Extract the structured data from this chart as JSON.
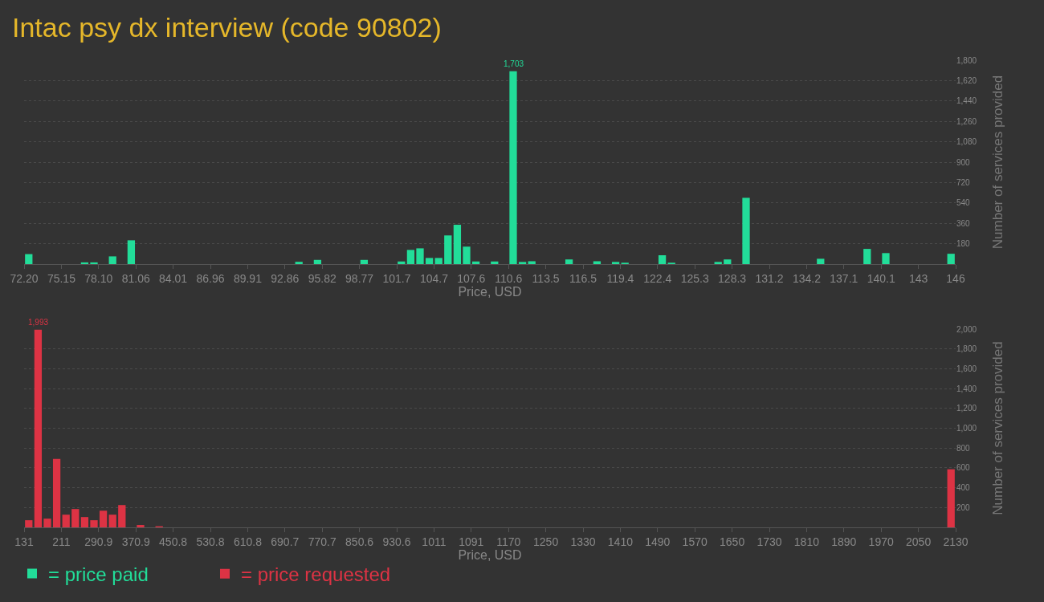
{
  "chart_data": [
    {
      "type": "histogram",
      "title": "Intac psy dx interview (code 90802)",
      "xlabel": "Price, USD",
      "ylabel": "Number of services provided",
      "bins": [
        72.2,
        72.938,
        73.676,
        74.414,
        75.152,
        75.89,
        76.628,
        77.366,
        78.104,
        78.842,
        79.58,
        80.318,
        81.056,
        81.794,
        82.532,
        83.27,
        84.008,
        84.746,
        85.484,
        86.222,
        86.96,
        87.698,
        88.436,
        89.174,
        89.912,
        90.65,
        91.388,
        92.126,
        92.864,
        93.602,
        94.34,
        95.078,
        95.816,
        96.554,
        97.292,
        98.03,
        98.768,
        99.506,
        100.244,
        100.982,
        101.72,
        102.458,
        103.196,
        103.934,
        104.672,
        105.41,
        106.148,
        106.886,
        107.624,
        108.362,
        109.1,
        109.838,
        110.576,
        111.314,
        112.052,
        112.79,
        113.528,
        114.266,
        115.004,
        115.742,
        116.48,
        117.218,
        117.956,
        118.694,
        119.432,
        120.17,
        120.908,
        121.646,
        122.384,
        123.122,
        123.86,
        124.598,
        125.336,
        126.074,
        126.812,
        127.55,
        128.288,
        129.026,
        129.764,
        130.502,
        131.24,
        131.978,
        132.716,
        133.454,
        134.192,
        134.93,
        135.668,
        136.406,
        137.144,
        137.882,
        138.62,
        139.358,
        140.096,
        140.834,
        141.572,
        142.31,
        143.048,
        143.786,
        144.524,
        145.262,
        146.0
      ],
      "series": [
        {
          "name": "= price paid",
          "color": "#22dd99",
          "values": [
            88,
            0,
            0,
            0,
            0,
            0,
            15,
            15,
            0,
            68,
            0,
            210,
            0,
            0,
            0,
            0,
            0,
            0,
            0,
            0,
            0,
            0,
            0,
            0,
            0,
            0,
            0,
            0,
            0,
            20,
            0,
            37,
            0,
            0,
            0,
            0,
            37,
            0,
            0,
            0,
            23,
            125,
            139,
            54,
            54,
            253,
            347,
            154,
            23,
            0,
            23,
            0,
            1703,
            19,
            25,
            0,
            0,
            0,
            41,
            0,
            0,
            25,
            0,
            19,
            12,
            0,
            0,
            0,
            78,
            12,
            0,
            0,
            0,
            0,
            19,
            41,
            0,
            585,
            0,
            0,
            0,
            0,
            0,
            0,
            0,
            47,
            0,
            0,
            0,
            0,
            134,
            0,
            97,
            0,
            0,
            0,
            0,
            0,
            0,
            91
          ]
        }
      ],
      "annotations": [
        {
          "text": "1,703",
          "x": 110.945,
          "y": 1703
        }
      ],
      "xlim": [
        72.2,
        146
      ],
      "xticks": [
        {
          "value": 72.2,
          "label": "72.20"
        },
        {
          "value": 75.152,
          "label": "75.15"
        },
        {
          "value": 78.104,
          "label": "78.10"
        },
        {
          "value": 81.056,
          "label": "81.06"
        },
        {
          "value": 84.008,
          "label": "84.01"
        },
        {
          "value": 86.96,
          "label": "86.96"
        },
        {
          "value": 89.912,
          "label": "89.91"
        },
        {
          "value": 92.864,
          "label": "92.86"
        },
        {
          "value": 95.816,
          "label": "95.82"
        },
        {
          "value": 98.768,
          "label": "98.77"
        },
        {
          "value": 101.72,
          "label": "101.7"
        },
        {
          "value": 104.672,
          "label": "104.7"
        },
        {
          "value": 107.624,
          "label": "107.6"
        },
        {
          "value": 110.576,
          "label": "110.6"
        },
        {
          "value": 113.528,
          "label": "113.5"
        },
        {
          "value": 116.48,
          "label": "116.5"
        },
        {
          "value": 119.432,
          "label": "119.4"
        },
        {
          "value": 122.384,
          "label": "122.4"
        },
        {
          "value": 125.336,
          "label": "125.3"
        },
        {
          "value": 128.288,
          "label": "128.3"
        },
        {
          "value": 131.24,
          "label": "131.2"
        },
        {
          "value": 134.192,
          "label": "134.2"
        },
        {
          "value": 137.144,
          "label": "137.1"
        },
        {
          "value": 140.096,
          "label": "140.1"
        },
        {
          "value": 143.048,
          "label": "143"
        },
        146
      ],
      "ylim": [
        0,
        1800
      ],
      "yticks": [
        180,
        360,
        540,
        720,
        900,
        {
          "value": 1080,
          "label": "1,080"
        },
        {
          "value": 1260,
          "label": "1,260"
        },
        {
          "value": 1440,
          "label": "1,440"
        },
        {
          "value": 1620,
          "label": "1,620"
        },
        {
          "value": 1800,
          "label": "1,800"
        }
      ],
      "grid": "y",
      "legend": "bottom"
    },
    {
      "type": "histogram",
      "xlabel": "Price, USD",
      "ylabel": "Number of services provided",
      "bins": [
        131,
        150.99,
        170.98,
        190.97,
        210.96,
        230.95,
        250.94,
        270.93,
        290.92,
        310.91,
        330.9,
        350.89,
        370.88,
        390.87,
        410.86,
        430.85,
        450.84,
        470.83,
        490.82,
        510.81,
        530.8,
        550.79,
        570.78,
        590.77,
        610.76,
        630.75,
        650.74,
        670.73,
        690.72,
        710.71,
        730.7,
        750.69,
        770.68,
        790.67,
        810.66,
        830.65,
        850.64,
        870.63,
        890.62,
        910.61,
        930.6,
        950.59,
        970.58,
        990.57,
        1010.56,
        1030.55,
        1050.54,
        1070.53,
        1090.52,
        1110.51,
        1130.5,
        1150.49,
        1170.48,
        1190.47,
        1210.46,
        1230.45,
        1250.44,
        1270.43,
        1290.42,
        1310.41,
        1330.4,
        1350.39,
        1370.38,
        1390.37,
        1410.36,
        1430.35,
        1450.34,
        1470.33,
        1490.32,
        1510.31,
        1530.3,
        1550.29,
        1570.28,
        1590.27,
        1610.26,
        1630.25,
        1650.24,
        1670.23,
        1690.22,
        1710.21,
        1730.2,
        1750.19,
        1770.18,
        1790.17,
        1810.16,
        1830.15,
        1850.14,
        1870.13,
        1890.12,
        1910.11,
        1930.1,
        1950.09,
        1970.08,
        1990.07,
        2010.06,
        2030.05,
        2050.04,
        2070.03,
        2090.02,
        2110.01,
        2130
      ],
      "series": [
        {
          "name": "= price requested",
          "color": "#dd3344",
          "values": [
            72,
            1993,
            88,
            690,
            128,
            185,
            104,
            72,
            168,
            128,
            225,
            0,
            24,
            0,
            11,
            0,
            0,
            0,
            0,
            0,
            0,
            0,
            0,
            0,
            0,
            0,
            0,
            0,
            0,
            0,
            0,
            0,
            0,
            0,
            0,
            0,
            0,
            0,
            0,
            0,
            0,
            0,
            0,
            0,
            0,
            0,
            0,
            0,
            0,
            0,
            0,
            0,
            0,
            0,
            0,
            0,
            0,
            0,
            0,
            0,
            0,
            0,
            0,
            0,
            0,
            0,
            0,
            0,
            0,
            0,
            0,
            0,
            0,
            0,
            0,
            0,
            0,
            0,
            0,
            0,
            0,
            0,
            0,
            0,
            0,
            0,
            0,
            0,
            0,
            0,
            0,
            0,
            0,
            0,
            0,
            0,
            0,
            0,
            0,
            586
          ]
        }
      ],
      "annotations": [
        {
          "text": "1,993",
          "x": 160.985,
          "y": 1993
        }
      ],
      "xlim": [
        131,
        2130
      ],
      "xticks": [
        131,
        {
          "value": 210.96,
          "label": "211"
        },
        {
          "value": 290.92,
          "label": "290.9"
        },
        {
          "value": 370.88,
          "label": "370.9"
        },
        {
          "value": 450.84,
          "label": "450.8"
        },
        530.8,
        {
          "value": 610.76,
          "label": "610.8"
        },
        {
          "value": 690.72,
          "label": "690.7"
        },
        {
          "value": 770.68,
          "label": "770.7"
        },
        {
          "value": 850.64,
          "label": "850.6"
        },
        930.6,
        {
          "value": 1010.56,
          "label": "1011"
        },
        {
          "value": 1090.52,
          "label": "1091"
        },
        {
          "value": 1170.48,
          "label": "1170"
        },
        {
          "value": 1250.44,
          "label": "1250"
        },
        {
          "value": 1330.4,
          "label": "1330"
        },
        {
          "value": 1410.36,
          "label": "1410"
        },
        {
          "value": 1490.32,
          "label": "1490"
        },
        {
          "value": 1570.28,
          "label": "1570"
        },
        {
          "value": 1650.24,
          "label": "1650"
        },
        {
          "value": 1730.2,
          "label": "1730"
        },
        {
          "value": 1810.16,
          "label": "1810"
        },
        {
          "value": 1890.12,
          "label": "1890"
        },
        {
          "value": 1970.08,
          "label": "1970"
        },
        {
          "value": 2050.04,
          "label": "2050"
        },
        2130
      ],
      "ylim": [
        0,
        2000
      ],
      "yticks": [
        200,
        400,
        600,
        800,
        {
          "value": 1000,
          "label": "1,000"
        },
        {
          "value": 1200,
          "label": "1,200"
        },
        {
          "value": 1400,
          "label": "1,400"
        },
        {
          "value": 1600,
          "label": "1,600"
        },
        {
          "value": 1800,
          "label": "1,800"
        },
        {
          "value": 2000,
          "label": "2,000"
        }
      ],
      "grid": "y",
      "legend": "bottom"
    }
  ]
}
